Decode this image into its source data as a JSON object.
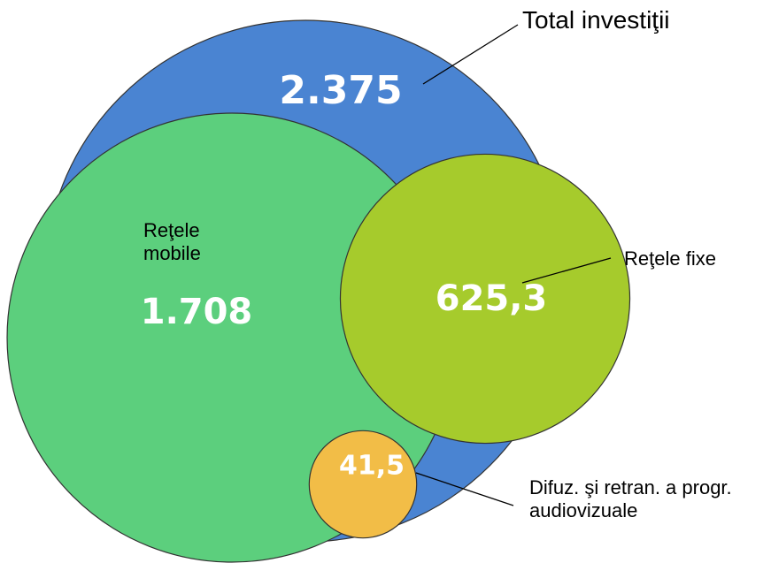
{
  "chart_data": {
    "type": "bubble",
    "categories": [
      "Total investiţii",
      "Reţele mobile",
      "Reţele fixe",
      "Difuz. şi retran. a progr. audiovizuale"
    ],
    "values": [
      2375,
      1708,
      625.3,
      41.5
    ],
    "value_labels": [
      "2.375",
      "1.708",
      "625,3",
      "41,5"
    ],
    "colors": [
      "#4a84d2",
      "#5ccf7d",
      "#a6cb2c",
      "#f2bd47"
    ]
  }
}
